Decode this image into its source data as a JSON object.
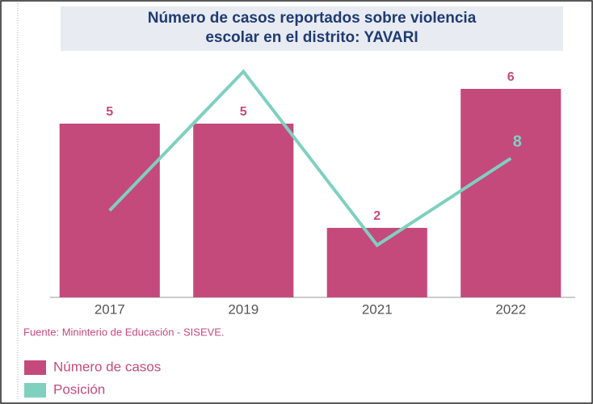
{
  "chart_data": {
    "type": "bar-line",
    "title": [
      "Número de casos reportados sobre violencia",
      "escolar en el distrito: YAVARI"
    ],
    "categories": [
      "2017",
      "2019",
      "2021",
      "2022"
    ],
    "ylim": [
      0,
      7
    ],
    "y2lim": [
      0,
      14
    ],
    "series": [
      {
        "name": "Número de casos",
        "color": "#c54a7c",
        "type": "bar",
        "values": [
          5,
          5,
          2,
          6
        ]
      },
      {
        "name": "Posición",
        "color": "#7fd0bf",
        "type": "line",
        "axis": "y2",
        "values": [
          5,
          13,
          3,
          8
        ],
        "labels": "last"
      }
    ],
    "source": "Fuente: Mininterio de Educación - SISEVE."
  }
}
